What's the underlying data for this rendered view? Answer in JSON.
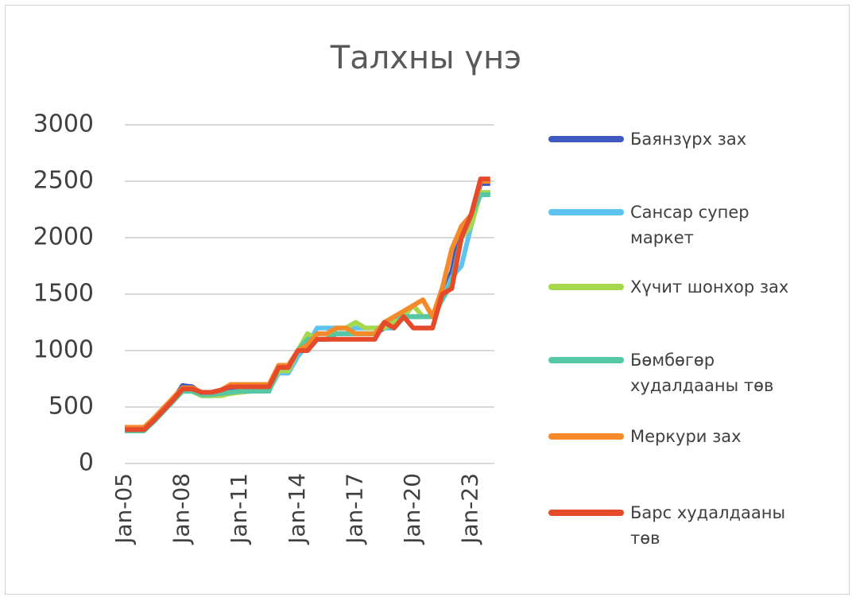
{
  "chart_data": {
    "type": "line",
    "title": "Талхны үнэ",
    "categories": [
      "Jan-05",
      null,
      null,
      null,
      null,
      null,
      "Jan-08",
      null,
      null,
      null,
      null,
      null,
      "Jan-11",
      null,
      null,
      null,
      null,
      null,
      "Jan-14",
      null,
      null,
      null,
      null,
      null,
      "Jan-17",
      null,
      null,
      null,
      null,
      null,
      "Jan-20",
      null,
      null,
      null,
      null,
      null,
      "Jan-23",
      null,
      null
    ],
    "ylim": [
      0,
      3000
    ],
    "yticks": [
      0,
      500,
      1000,
      1500,
      2000,
      2500,
      3000
    ],
    "grid": true,
    "legend": "right",
    "series": [
      {
        "name": "Баянзүрх зах",
        "color": "#4059c0",
        "values": [
          300,
          300,
          300,
          380,
          470,
          560,
          690,
          680,
          620,
          620,
          630,
          640,
          650,
          660,
          660,
          680,
          850,
          850,
          1000,
          1050,
          1100,
          1100,
          1150,
          1150,
          1150,
          1150,
          1150,
          1200,
          1250,
          1300,
          1300,
          1300,
          1300,
          1500,
          1700,
          2100,
          2200,
          2480,
          2480
        ]
      },
      {
        "name": "Сансар супер маркет",
        "color": "#5ec3ee",
        "values": [
          290,
          290,
          290,
          370,
          460,
          550,
          640,
          640,
          600,
          600,
          620,
          630,
          630,
          640,
          650,
          650,
          800,
          800,
          950,
          1050,
          1200,
          1200,
          1200,
          1200,
          1200,
          1200,
          1200,
          1200,
          1200,
          1300,
          1300,
          1300,
          1300,
          1450,
          1650,
          1750,
          2100,
          2400,
          2400
        ]
      },
      {
        "name": "Хүчит шонхор зах",
        "color": "#a6d84e",
        "values": [
          300,
          300,
          300,
          370,
          460,
          550,
          640,
          640,
          600,
          600,
          600,
          620,
          630,
          640,
          650,
          650,
          820,
          820,
          1000,
          1150,
          1100,
          1100,
          1200,
          1200,
          1250,
          1200,
          1200,
          1200,
          1250,
          1300,
          1400,
          1300,
          1300,
          1450,
          1600,
          2000,
          2100,
          2400,
          2400
        ]
      },
      {
        "name": "Бөмбөгөр худалдааны төв",
        "color": "#55c7a4",
        "values": [
          290,
          290,
          290,
          370,
          460,
          550,
          640,
          640,
          610,
          610,
          620,
          630,
          640,
          640,
          640,
          640,
          850,
          850,
          1000,
          1100,
          1100,
          1100,
          1150,
          1150,
          1150,
          1150,
          1150,
          1250,
          1300,
          1300,
          1300,
          1300,
          1300,
          1450,
          1600,
          2000,
          2200,
          2380,
          2380
        ]
      },
      {
        "name": "Меркури зах",
        "color": "#f58a2a",
        "values": [
          320,
          320,
          320,
          400,
          490,
          580,
          670,
          670,
          630,
          630,
          650,
          700,
          700,
          700,
          700,
          700,
          870,
          870,
          1000,
          1050,
          1150,
          1150,
          1200,
          1200,
          1150,
          1150,
          1150,
          1250,
          1300,
          1350,
          1400,
          1450,
          1300,
          1550,
          1900,
          2100,
          2200,
          2500,
          2500
        ]
      },
      {
        "name": "Барс худалдааны төв",
        "color": "#e54a2b",
        "values": [
          300,
          300,
          300,
          380,
          470,
          560,
          660,
          660,
          630,
          630,
          650,
          680,
          680,
          680,
          680,
          680,
          850,
          850,
          1000,
          1000,
          1100,
          1100,
          1100,
          1100,
          1100,
          1100,
          1100,
          1250,
          1200,
          1300,
          1200,
          1200,
          1200,
          1500,
          1550,
          2000,
          2200,
          2520,
          2520
        ]
      }
    ]
  }
}
